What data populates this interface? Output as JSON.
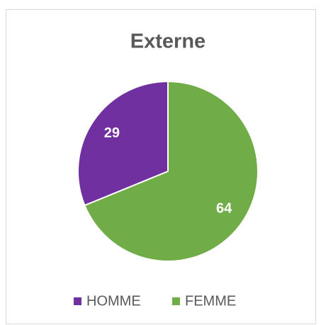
{
  "chart_data": {
    "type": "pie",
    "title": "Externe",
    "categories": [
      "HOMME",
      "FEMME"
    ],
    "values": [
      29,
      64
    ],
    "colors": [
      "#7030a0",
      "#70ad47"
    ],
    "legend": "bottom"
  }
}
